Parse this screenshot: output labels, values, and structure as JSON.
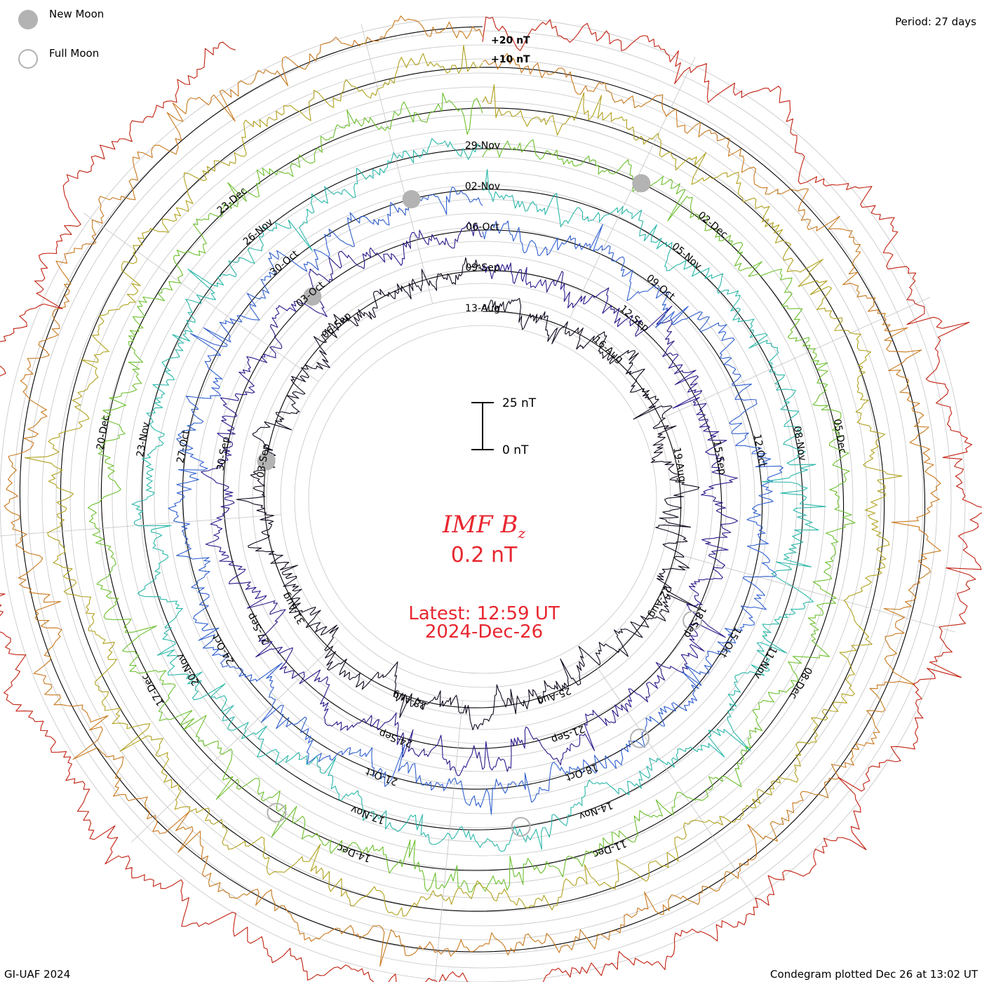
{
  "header": {
    "period_label": "Period: 27 days"
  },
  "legend": {
    "new_moon_label": "New Moon",
    "full_moon_label": "Full Moon",
    "moon_color": "#b3b3b3"
  },
  "center": {
    "param_name": "IMF B",
    "param_subscript": "z",
    "current_value": "0.2 nT",
    "latest_time": "Latest: 12:59 UT",
    "latest_date": "2024-Dec-26",
    "text_color": "#e8262f"
  },
  "footer": {
    "credit": "GI-UAF 2024",
    "plotted": "Condegram plotted Dec 26 at 13:02 UT"
  },
  "chart_data": {
    "type": "line",
    "subtype": "polar-condegram",
    "title": "IMF Bz",
    "period_days": 27,
    "units": "nT",
    "scale_bar": {
      "top_label": "25 nT",
      "bottom_label": "0 nT",
      "span_nT": 25
    },
    "ring_scale_labels": [
      "+20 nT",
      "+10 nT"
    ],
    "rotations": [
      {
        "index": 1,
        "start": "2024-08-13",
        "color": "#10081c",
        "date_labels": [
          "13-Aug",
          "16-Aug",
          "19-Aug",
          "22-Aug",
          "25-Aug",
          "28-Aug",
          "31-Aug",
          "03-Sep",
          "06-Sep"
        ]
      },
      {
        "index": 2,
        "start": "2024-09-09",
        "color": "#2a1a8a",
        "date_labels": [
          "09-Sep",
          "12-Sep",
          "15-Sep",
          "18-Sep",
          "21-Sep",
          "24-Sep",
          "27-Sep",
          "30-Sep",
          "03-Oct"
        ]
      },
      {
        "index": 3,
        "start": "2024-10-06",
        "color": "#2f5fcf",
        "date_labels": [
          "06-Oct",
          "09-Oct",
          "12-Oct",
          "15-Oct",
          "18-Oct",
          "21-Oct",
          "24-Oct",
          "27-Oct",
          "30-Oct"
        ]
      },
      {
        "index": 4,
        "start": "2024-11-02",
        "color": "#2ab7a9",
        "date_labels": [
          "02-Nov",
          "05-Nov",
          "08-Nov",
          "11-Nov",
          "14-Nov",
          "17-Nov",
          "20-Nov",
          "23-Nov",
          "26-Nov"
        ]
      },
      {
        "index": 5,
        "start": "2024-11-29",
        "color": "#6cbf2e",
        "date_labels": [
          "29-Nov",
          "02-Dec",
          "05-Dec",
          "08-Dec",
          "11-Dec",
          "14-Dec",
          "17-Dec",
          "20-Dec",
          "23-Dec"
        ]
      },
      {
        "index": 6,
        "start": "2024-12-26",
        "color": "#b0a11c",
        "date_labels": []
      },
      {
        "index": 7,
        "start": "",
        "color": "#c8781c",
        "date_labels": []
      },
      {
        "index": 8,
        "start": "",
        "color": "#c22010",
        "date_labels": []
      }
    ],
    "visible_date_labels": [
      "13-Aug",
      "16-Aug",
      "19-Aug",
      "22-Aug",
      "25-Aug",
      "28-Aug",
      "31-Aug",
      "03-Sep",
      "06-Sep",
      "09-Sep",
      "12-Sep",
      "15-Sep",
      "18-Sep",
      "21-Sep",
      "24-Sep",
      "27-Sep",
      "30-Sep",
      "03-Oct",
      "06-Oct",
      "09-Oct",
      "12-Oct",
      "15-Oct",
      "18-Oct",
      "21-Oct",
      "24-Oct",
      "27-Oct",
      "30-Oct",
      "02-Nov",
      "05-Nov",
      "08-Nov",
      "11-Nov",
      "14-Nov",
      "17-Nov",
      "20-Nov",
      "23-Nov",
      "26-Nov",
      "29-Nov",
      "02-Dec",
      "05-Dec",
      "08-Dec",
      "11-Dec",
      "14-Dec",
      "17-Dec",
      "20-Dec"
    ],
    "new_moons": [
      "2024-09-03",
      "2024-10-03",
      "2024-11-01",
      "2024-12-01"
    ],
    "full_moons": [
      "2024-09-18",
      "2024-10-17",
      "2024-11-15",
      "2024-12-15"
    ],
    "latest_value_nT": 0.2
  }
}
